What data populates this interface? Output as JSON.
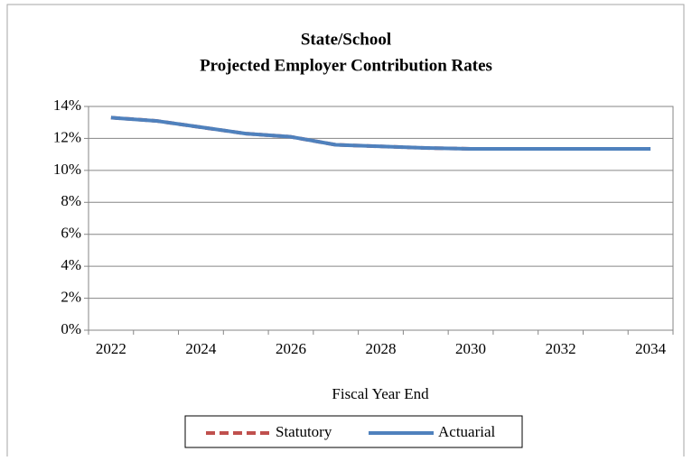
{
  "chart_data": {
    "type": "line",
    "title": "State/School",
    "subtitle": "Projected Employer Contribution Rates",
    "x_label": "Fiscal Year End",
    "categories": [
      "2022",
      null,
      "2024",
      null,
      "2026",
      null,
      "2028",
      null,
      "2030",
      null,
      "2032",
      null,
      "2034"
    ],
    "series": [
      {
        "name": "Statutory",
        "color": "#c0504d",
        "dashed": true,
        "values": [
          13.3,
          13.1,
          12.7,
          12.3,
          12.1,
          11.6,
          11.5,
          11.4,
          11.35,
          11.35,
          11.35,
          11.35,
          11.35
        ]
      },
      {
        "name": "Actuarial",
        "color": "#4f81bd",
        "dashed": false,
        "values": [
          13.3,
          13.1,
          12.7,
          12.3,
          12.1,
          11.6,
          11.5,
          11.4,
          11.35,
          11.35,
          11.35,
          11.35,
          11.35
        ]
      }
    ],
    "ylim": [
      0,
      14
    ],
    "yticks": [
      {
        "value": 0,
        "label": "0%"
      },
      {
        "value": 2,
        "label": "2%"
      },
      {
        "value": 4,
        "label": "4%"
      },
      {
        "value": 6,
        "label": "6%"
      },
      {
        "value": 8,
        "label": "8%"
      },
      {
        "value": 10,
        "label": "10%"
      },
      {
        "value": 12,
        "label": "12%"
      },
      {
        "value": 14,
        "label": "14%"
      }
    ],
    "grid": true,
    "legend": "bottom"
  }
}
